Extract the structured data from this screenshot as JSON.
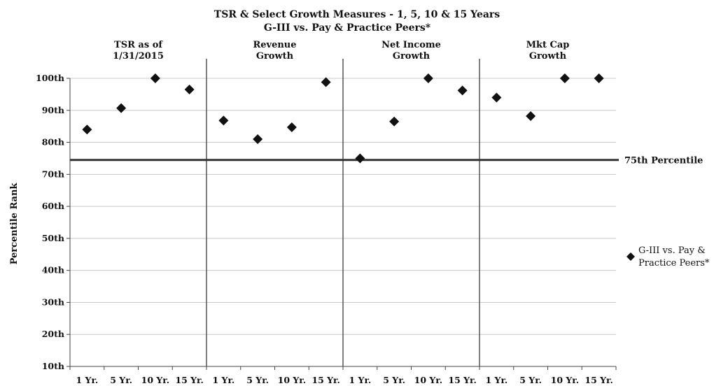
{
  "chart_data": {
    "type": "scatter",
    "title": [
      "TSR & Select Growth  Measures - 1,  5, 10 & 15 Years",
      "G-III  vs. Pay & Practice Peers*"
    ],
    "ylabel": "Percentile Rank",
    "ylim": [
      10,
      100
    ],
    "yticks": [
      "10th",
      "20th",
      "30th",
      "40th",
      "50th",
      "60th",
      "70th",
      "80th",
      "90th",
      "100th"
    ],
    "grid": true,
    "legend_position": "right",
    "groups": [
      {
        "label": [
          "TSR as of",
          "1/31/2015"
        ]
      },
      {
        "label": [
          "Revenue",
          "Growth"
        ]
      },
      {
        "label": [
          "Net Income",
          "Growth"
        ]
      },
      {
        "label": [
          "Mkt Cap",
          "Growth"
        ]
      }
    ],
    "categories": [
      "1 Yr.",
      "5 Yr.",
      "10 Yr.",
      "15 Yr.",
      "1 Yr.",
      "5 Yr.",
      "10 Yr.",
      "15 Yr.",
      "1 Yr.",
      "5 Yr.",
      "10 Yr.",
      "15 Yr.",
      "1 Yr.",
      "5 Yr.",
      "10 Yr.",
      "15 Yr."
    ],
    "series": [
      {
        "name": "G-III vs. Pay & Practice Peers*",
        "values": [
          84,
          90.7,
          100,
          96.5,
          86.8,
          81,
          84.7,
          98.8,
          75,
          86.5,
          100,
          96.2,
          94,
          88.2,
          100,
          100
        ]
      }
    ],
    "reference_line": {
      "label": "75th Percentile",
      "value": 74.5
    },
    "colors": {
      "marker": "#111111",
      "grid": "#c8c8c8",
      "divider": "#555555",
      "reference": "#333333"
    }
  }
}
